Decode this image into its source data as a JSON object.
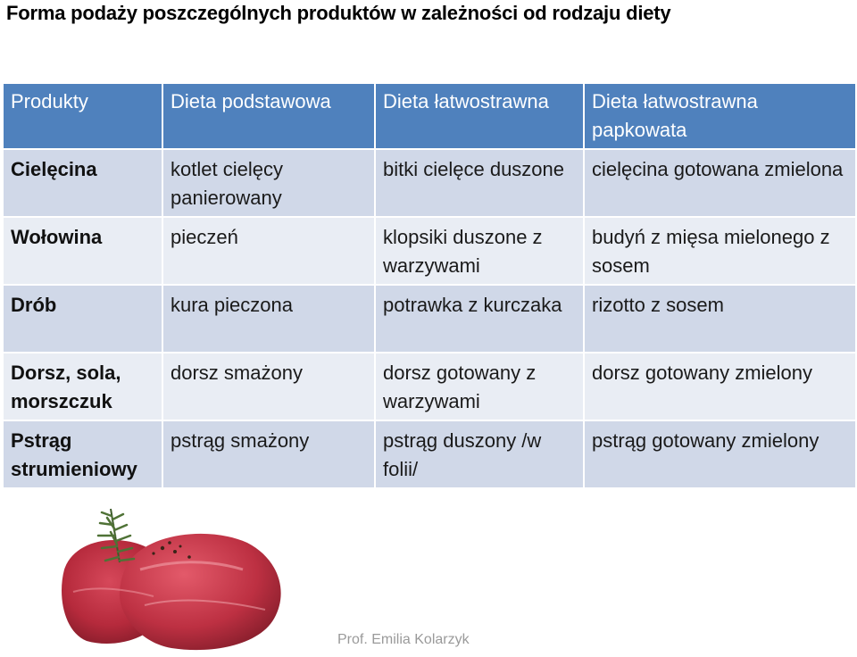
{
  "title": "Forma podaży poszczególnych produktów w zależności od rodzaju diety",
  "table": {
    "headers": [
      "Produkty",
      "Dieta podstawowa",
      "Dieta łatwostrawna",
      "Dieta łatwostrawna papkowata"
    ],
    "rows": [
      [
        "Cielęcina",
        "kotlet cielęcy panierowany",
        "bitki cielęce duszone",
        "cielęcina gotowana zmielona"
      ],
      [
        "Wołowina",
        "pieczeń",
        "klopsiki duszone z warzywami",
        "budyń z mięsa mielonego z sosem"
      ],
      [
        "Drób",
        "kura pieczona",
        "potrawka z kurczaka",
        "rizotto z sosem"
      ],
      [
        "Dorsz, sola, morszczuk",
        "dorsz smażony",
        "dorsz gotowany z warzywami",
        "dorsz gotowany zmielony"
      ],
      [
        "Pstrąg strumieniowy",
        "pstrąg smażony",
        "pstrąg duszony /w folii/",
        "pstrąg  gotowany zmielony"
      ]
    ]
  },
  "image": {
    "icon": "raw-beef-with-rosemary"
  },
  "footer": "Prof. Emilia Kolarzyk",
  "colors": {
    "header": "#4f81bd",
    "row_dark": "#d0d8e8",
    "row_light": "#e9edf4"
  }
}
